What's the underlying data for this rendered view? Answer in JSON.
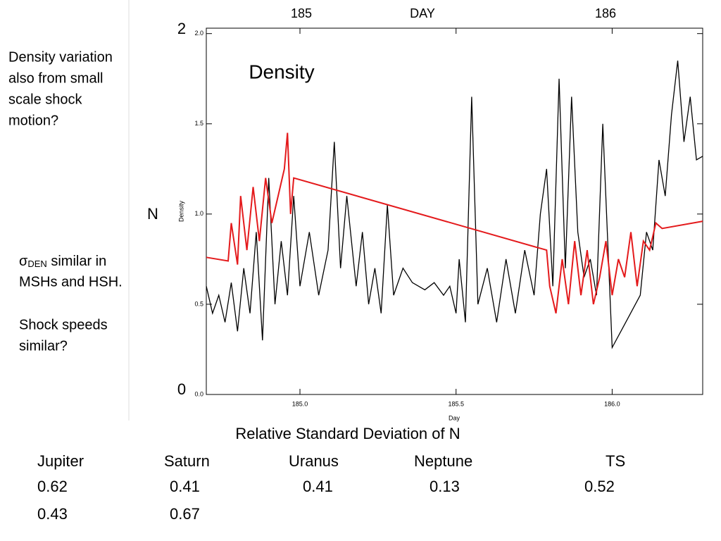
{
  "chart_data": {
    "type": "line",
    "title": "Density",
    "x_label": "Day",
    "y_label": "Density",
    "xlim": [
      184.7,
      186.29
    ],
    "ylim": [
      0,
      2.03
    ],
    "xticks": [
      {
        "value": 185,
        "label": "185.0"
      },
      {
        "value": 185.5,
        "label": "185.5"
      },
      {
        "value": 186,
        "label": "186.0"
      }
    ],
    "yticks": [
      {
        "value": 0,
        "label": "0.0"
      },
      {
        "value": 0.5,
        "label": "0.5"
      },
      {
        "value": 1,
        "label": "1.0"
      },
      {
        "value": 1.5,
        "label": "1.5"
      },
      {
        "value": 2,
        "label": "2.0"
      }
    ],
    "series": [
      {
        "color": "#000000",
        "x": [
          184.7,
          184.72,
          184.74,
          184.76,
          184.78,
          184.8,
          184.82,
          184.84,
          184.86,
          184.88,
          184.9,
          184.92,
          184.94,
          184.96,
          184.98,
          185.0,
          185.03,
          185.06,
          185.09,
          185.11,
          185.13,
          185.15,
          185.18,
          185.2,
          185.22,
          185.24,
          185.26,
          185.28,
          185.3,
          185.33,
          185.36,
          185.4,
          185.43,
          185.46,
          185.48,
          185.5,
          185.51,
          185.53,
          185.55,
          185.57,
          185.6,
          185.63,
          185.66,
          185.69,
          185.72,
          185.75,
          185.77,
          185.79,
          185.81,
          185.83,
          185.85,
          185.87,
          185.89,
          185.91,
          185.93,
          185.95,
          185.97,
          186.0,
          186.09,
          186.11,
          186.13,
          186.15,
          186.17,
          186.19,
          186.21,
          186.23,
          186.25,
          186.27,
          186.29
        ],
        "values": [
          0.6,
          0.45,
          0.55,
          0.4,
          0.62,
          0.35,
          0.7,
          0.45,
          0.9,
          0.3,
          1.2,
          0.5,
          0.85,
          0.55,
          1.1,
          0.6,
          0.9,
          0.55,
          0.8,
          1.4,
          0.7,
          1.1,
          0.6,
          0.9,
          0.5,
          0.7,
          0.45,
          1.05,
          0.55,
          0.7,
          0.62,
          0.58,
          0.62,
          0.55,
          0.6,
          0.45,
          0.75,
          0.4,
          1.65,
          0.5,
          0.7,
          0.4,
          0.75,
          0.45,
          0.8,
          0.55,
          1.0,
          1.25,
          0.6,
          1.75,
          0.7,
          1.65,
          0.9,
          0.65,
          0.75,
          0.55,
          1.5,
          0.26,
          0.55,
          0.9,
          0.8,
          1.3,
          1.1,
          1.55,
          1.85,
          1.4,
          1.65,
          1.3,
          1.32
        ]
      },
      {
        "color": "#e41a1c",
        "x": [
          184.7,
          184.77,
          184.78,
          184.8,
          184.81,
          184.83,
          184.85,
          184.87,
          184.89,
          184.91,
          184.93,
          184.95,
          184.96,
          184.97,
          184.98,
          185.79,
          185.8,
          185.82,
          185.84,
          185.86,
          185.88,
          185.9,
          185.92,
          185.94,
          185.96,
          185.98,
          186.0,
          186.02,
          186.04,
          186.06,
          186.08,
          186.1,
          186.12,
          186.14,
          186.16,
          186.29
        ],
        "values": [
          0.76,
          0.74,
          0.95,
          0.72,
          1.1,
          0.8,
          1.15,
          0.85,
          1.2,
          0.95,
          1.1,
          1.25,
          1.45,
          1.0,
          1.2,
          0.8,
          0.6,
          0.45,
          0.75,
          0.5,
          0.85,
          0.55,
          0.8,
          0.5,
          0.65,
          0.85,
          0.55,
          0.75,
          0.65,
          0.9,
          0.6,
          0.85,
          0.8,
          0.95,
          0.92,
          0.96
        ]
      }
    ]
  },
  "annotations": {
    "day_185": "185",
    "day_label": "DAY",
    "day_186": "186",
    "y_top": "2",
    "y_mid": "N",
    "y_bottom": "0"
  },
  "notes": {
    "first": [
      "Density variation",
      "also from small",
      "scale shock",
      "motion?"
    ],
    "sigma": "σ",
    "sigma_sub": "DEN",
    "sigma_rest": " similar in",
    "sigma_line2": "MSHs and HSH.",
    "last": [
      "Shock speeds",
      "similar?"
    ]
  },
  "table": {
    "caption": "Relative Standard Deviation of N",
    "headers": [
      "Jupiter",
      "Saturn",
      "Uranus",
      "Neptune",
      "TS"
    ],
    "rows": [
      [
        0.62,
        0.41,
        0.41,
        0.13,
        0.52
      ],
      [
        0.43,
        0.67
      ]
    ]
  }
}
